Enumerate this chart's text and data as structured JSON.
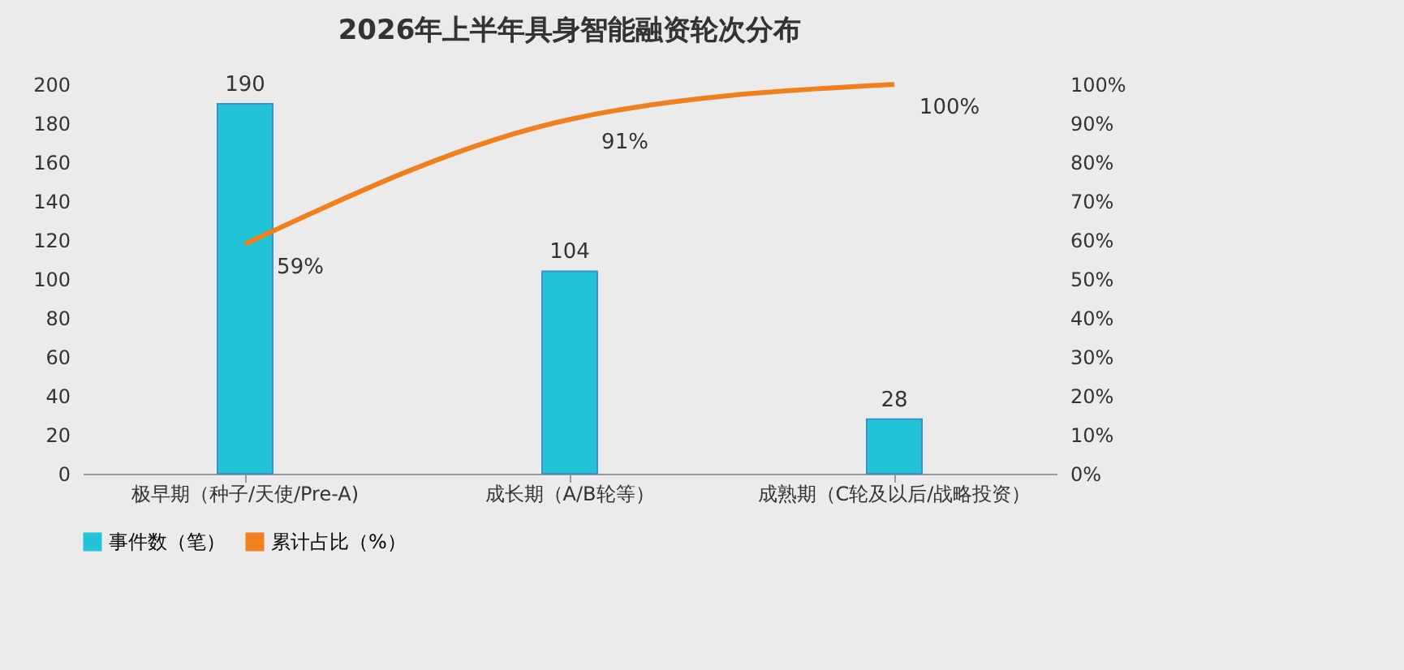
{
  "chart_data": {
    "type": "bar",
    "title": "2026年上半年具身智能融资轮次分布",
    "categories": [
      "极早期（种子/天使/Pre-A)",
      "成长期（A/B轮等）",
      "成熟期（C轮及以后/战略投资）"
    ],
    "series": [
      {
        "name": "事件数（笔）",
        "color": "#22c3d6",
        "values": [
          190,
          104,
          28
        ],
        "value_labels": [
          "190",
          "104",
          "28"
        ]
      },
      {
        "name": "累计占比（%）",
        "type": "line",
        "axis": "y2",
        "color": "#f07f1e",
        "values": [
          59,
          91,
          100
        ],
        "value_labels": [
          "59%",
          "91%",
          "100%"
        ]
      }
    ],
    "ylim": [
      0,
      200
    ],
    "yticks": [
      0,
      20,
      40,
      60,
      80,
      100,
      120,
      140,
      160,
      180,
      200
    ],
    "y2lim": [
      0,
      100
    ],
    "y2ticks": [
      {
        "value": 0,
        "label": "0%"
      },
      {
        "value": 10,
        "label": "10%"
      },
      {
        "value": 20,
        "label": "20%"
      },
      {
        "value": 30,
        "label": "30%"
      },
      {
        "value": 40,
        "label": "40%"
      },
      {
        "value": 50,
        "label": "50%"
      },
      {
        "value": 60,
        "label": "60%"
      },
      {
        "value": 70,
        "label": "70%"
      },
      {
        "value": 80,
        "label": "80%"
      },
      {
        "value": 90,
        "label": "90%"
      },
      {
        "value": 100,
        "label": "100%"
      }
    ],
    "legend": "bottom",
    "marker": "none",
    "line_style": "solid"
  }
}
